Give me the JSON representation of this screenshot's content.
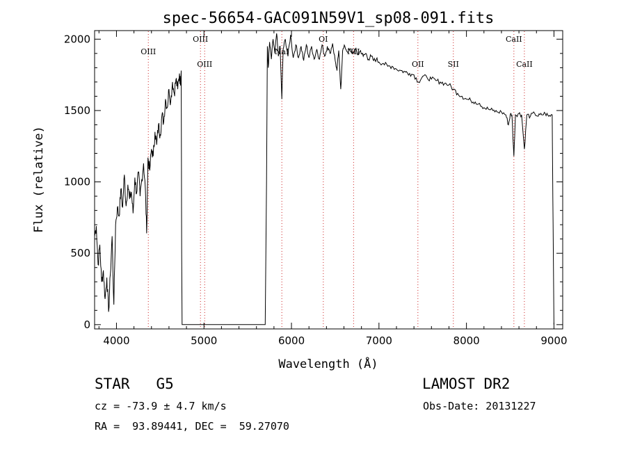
{
  "chart_data": {
    "type": "line",
    "title": "spec-56654-GAC091N59V1_sp08-091.fits",
    "xlabel": "Wavelength (Å)",
    "ylabel": "Flux (relative)",
    "xlim": [
      3750,
      9100
    ],
    "ylim": [
      -30,
      2060
    ],
    "xticks": [
      4000,
      5000,
      6000,
      7000,
      8000,
      9000
    ],
    "yticks": [
      0,
      500,
      1000,
      1500,
      2000
    ],
    "grid": false,
    "series": [
      {
        "color": "#000000",
        "points": [
          [
            3750,
            620
          ],
          [
            3770,
            690
          ],
          [
            3790,
            420
          ],
          [
            3810,
            560
          ],
          [
            3830,
            300
          ],
          [
            3850,
            380
          ],
          [
            3870,
            180
          ],
          [
            3890,
            330
          ],
          [
            3910,
            90
          ],
          [
            3930,
            350
          ],
          [
            3950,
            620
          ],
          [
            3970,
            140
          ],
          [
            3990,
            700
          ],
          [
            4010,
            820
          ],
          [
            4030,
            760
          ],
          [
            4050,
            950
          ],
          [
            4070,
            820
          ],
          [
            4090,
            1050
          ],
          [
            4110,
            830
          ],
          [
            4130,
            980
          ],
          [
            4150,
            880
          ],
          [
            4170,
            930
          ],
          [
            4190,
            780
          ],
          [
            4210,
            1030
          ],
          [
            4230,
            920
          ],
          [
            4250,
            1070
          ],
          [
            4270,
            900
          ],
          [
            4290,
            1020
          ],
          [
            4310,
            1130
          ],
          [
            4330,
            950
          ],
          [
            4345,
            640
          ],
          [
            4360,
            1170
          ],
          [
            4380,
            1080
          ],
          [
            4400,
            1230
          ],
          [
            4420,
            1180
          ],
          [
            4440,
            1350
          ],
          [
            4460,
            1260
          ],
          [
            4480,
            1400
          ],
          [
            4500,
            1330
          ],
          [
            4520,
            1470
          ],
          [
            4540,
            1420
          ],
          [
            4560,
            1580
          ],
          [
            4580,
            1520
          ],
          [
            4600,
            1650
          ],
          [
            4620,
            1560
          ],
          [
            4640,
            1700
          ],
          [
            4660,
            1620
          ],
          [
            4680,
            1720
          ],
          [
            4700,
            1650
          ],
          [
            4720,
            1760
          ],
          [
            4730,
            1690
          ],
          [
            4740,
            1780
          ],
          [
            4745,
            500
          ],
          [
            4750,
            0
          ],
          [
            5700,
            0
          ],
          [
            5715,
            1000
          ],
          [
            5725,
            1950
          ],
          [
            5735,
            1800
          ],
          [
            5750,
            1980
          ],
          [
            5770,
            1860
          ],
          [
            5790,
            2000
          ],
          [
            5810,
            1900
          ],
          [
            5830,
            2040
          ],
          [
            5850,
            1880
          ],
          [
            5870,
            1950
          ],
          [
            5890,
            1580
          ],
          [
            5905,
            1930
          ],
          [
            5930,
            2000
          ],
          [
            5960,
            1880
          ],
          [
            5990,
            2030
          ],
          [
            6020,
            1870
          ],
          [
            6050,
            1960
          ],
          [
            6080,
            1870
          ],
          [
            6110,
            1950
          ],
          [
            6140,
            1850
          ],
          [
            6170,
            1960
          ],
          [
            6200,
            1870
          ],
          [
            6230,
            1950
          ],
          [
            6260,
            1860
          ],
          [
            6290,
            1930
          ],
          [
            6320,
            1860
          ],
          [
            6350,
            1960
          ],
          [
            6380,
            1880
          ],
          [
            6410,
            1950
          ],
          [
            6440,
            1900
          ],
          [
            6470,
            1970
          ],
          [
            6500,
            1850
          ],
          [
            6520,
            1780
          ],
          [
            6540,
            1920
          ],
          [
            6563,
            1650
          ],
          [
            6585,
            1920
          ],
          [
            6610,
            1950
          ],
          [
            6640,
            1910
          ],
          [
            6670,
            1930
          ],
          [
            6700,
            1900
          ],
          [
            6730,
            1930
          ],
          [
            6760,
            1890
          ],
          [
            6790,
            1920
          ],
          [
            6820,
            1880
          ],
          [
            6850,
            1900
          ],
          [
            6880,
            1860
          ],
          [
            6910,
            1880
          ],
          [
            6940,
            1850
          ],
          [
            6970,
            1860
          ],
          [
            7000,
            1840
          ],
          [
            7050,
            1830
          ],
          [
            7100,
            1810
          ],
          [
            7150,
            1810
          ],
          [
            7200,
            1790
          ],
          [
            7250,
            1780
          ],
          [
            7300,
            1770
          ],
          [
            7350,
            1760
          ],
          [
            7400,
            1750
          ],
          [
            7450,
            1700
          ],
          [
            7500,
            1740
          ],
          [
            7550,
            1730
          ],
          [
            7600,
            1720
          ],
          [
            7650,
            1710
          ],
          [
            7700,
            1700
          ],
          [
            7750,
            1690
          ],
          [
            7800,
            1680
          ],
          [
            7850,
            1650
          ],
          [
            7900,
            1620
          ],
          [
            7950,
            1600
          ],
          [
            8000,
            1580
          ],
          [
            8050,
            1570
          ],
          [
            8100,
            1560
          ],
          [
            8150,
            1550
          ],
          [
            8200,
            1520
          ],
          [
            8250,
            1510
          ],
          [
            8300,
            1500
          ],
          [
            8350,
            1490
          ],
          [
            8400,
            1490
          ],
          [
            8450,
            1470
          ],
          [
            8480,
            1400
          ],
          [
            8500,
            1470
          ],
          [
            8520,
            1470
          ],
          [
            8542,
            1180
          ],
          [
            8560,
            1470
          ],
          [
            8600,
            1480
          ],
          [
            8630,
            1470
          ],
          [
            8662,
            1230
          ],
          [
            8690,
            1470
          ],
          [
            8730,
            1460
          ],
          [
            8780,
            1480
          ],
          [
            8820,
            1460
          ],
          [
            8860,
            1470
          ],
          [
            8900,
            1480
          ],
          [
            8940,
            1460
          ],
          [
            8980,
            1470
          ],
          [
            8990,
            700
          ],
          [
            9000,
            0
          ]
        ]
      }
    ],
    "lines": [
      {
        "label": "OIII",
        "wavelength": 4364,
        "level": 1
      },
      {
        "label": "OIII",
        "wavelength": 4960,
        "level": 0
      },
      {
        "label": "OIII",
        "wavelength": 5008,
        "level": 2
      },
      {
        "label": "NaI",
        "wavelength": 5890,
        "level": 1
      },
      {
        "label": "OI",
        "wavelength": 6364,
        "level": 0
      },
      {
        "label": "NII",
        "wavelength": 6710,
        "level": 1
      },
      {
        "label": "OII",
        "wavelength": 7445,
        "level": 2
      },
      {
        "label": "SII",
        "wavelength": 7850,
        "level": 2
      },
      {
        "label": "CaII",
        "wavelength": 8542,
        "level": 0
      },
      {
        "label": "CaII",
        "wavelength": 8662,
        "level": 2
      }
    ]
  },
  "info": {
    "class_text": "STAR   G5",
    "survey": "LAMOST DR2",
    "cz": "cz = -73.9 ± 4.7 km/s",
    "obs_date": "Obs-Date: 20131227",
    "coords": "RA =  93.89441, DEC =  59.27070"
  }
}
